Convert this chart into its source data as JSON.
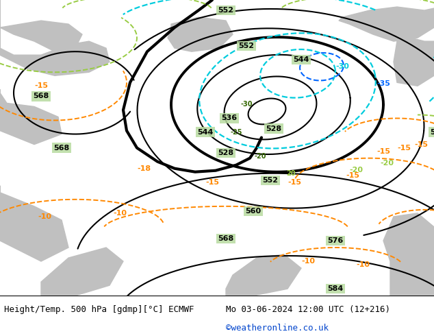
{
  "title_left": "Height/Temp. 500 hPa [gdmp][°C] ECMWF",
  "title_right": "Mo 03-06-2024 12:00 UTC (12+216)",
  "watermark": "©weatheronline.co.uk",
  "bg_color": "#b8dba0",
  "land_gray": "#c0c0c0",
  "black_color": "#000000",
  "orange_color": "#ff8800",
  "cyan_color": "#00ccdd",
  "blue_color": "#0066ff",
  "limegreen_color": "#99cc44",
  "green_label_color": "#336600",
  "label_fontsize": 8,
  "title_fontsize": 9,
  "contour_lw": 1.5,
  "bold_lw": 2.8
}
